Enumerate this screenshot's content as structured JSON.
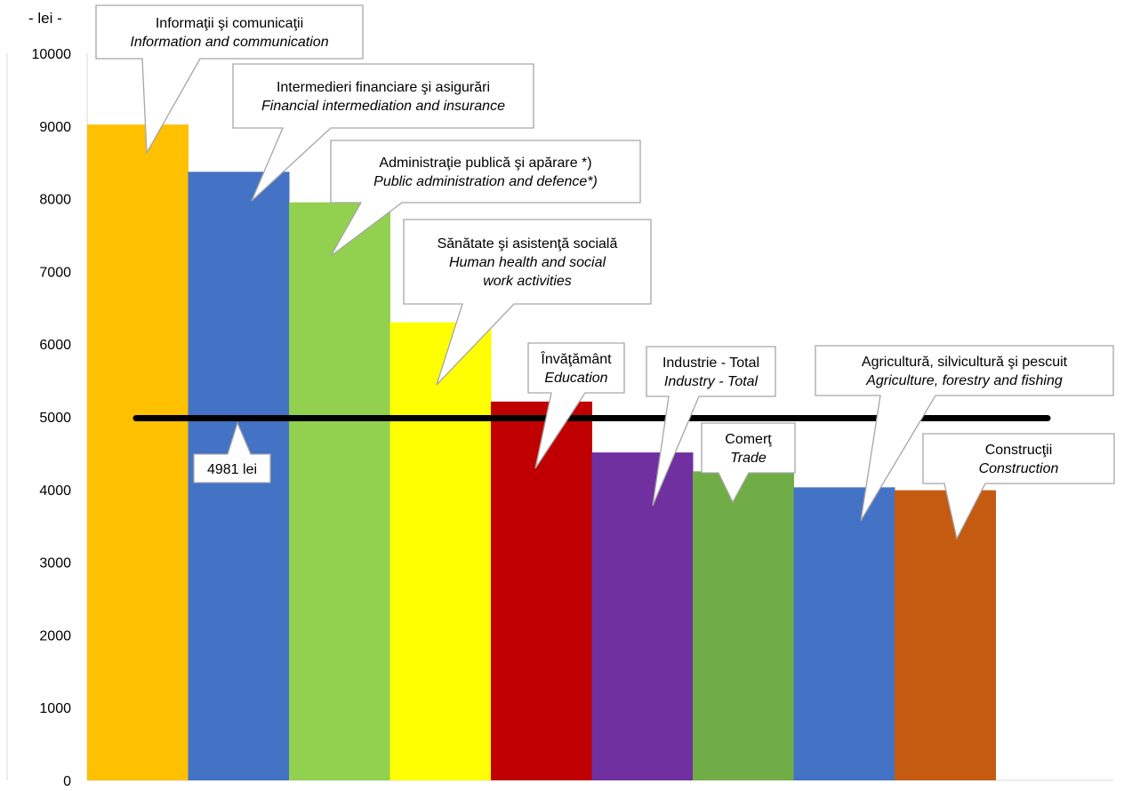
{
  "chart_data": {
    "type": "bar",
    "unit_label": "- lei -",
    "ylim": [
      0,
      10000
    ],
    "yticks": [
      0,
      1000,
      2000,
      3000,
      4000,
      5000,
      6000,
      7000,
      8000,
      9000,
      10000
    ],
    "grid": false,
    "legend": "none",
    "categories": [
      {
        "ro": "Informaţii şi comunicaţii",
        "en": "Information and communication",
        "value": 9020,
        "color": "#FFC000"
      },
      {
        "ro": "Intermedieri financiare şi asigurări",
        "en": "Financial intermediation and insurance",
        "value": 8370,
        "color": "#4472C4"
      },
      {
        "ro": "Administraţie publică şi apărare *)",
        "en": "Public administration and defence*)",
        "value": 7950,
        "color": "#92D050"
      },
      {
        "ro": "Sănătate şi asistenţă socială",
        "en": "Human health and social work activities",
        "value": 6300,
        "color": "#FFFF00"
      },
      {
        "ro": "Învăţământ",
        "en": "Education",
        "value": 5210,
        "color": "#C00000"
      },
      {
        "ro": "Industrie - Total",
        "en": "Industry - Total",
        "value": 4510,
        "color": "#7030A0"
      },
      {
        "ro": "Comerţ",
        "en": "Trade",
        "value": 4250,
        "color": "#70AD47"
      },
      {
        "ro": "Agricultură, silvicultură şi pescuit",
        "en": "Agriculture, forestry and fishing",
        "value": 4030,
        "color": "#4472C4"
      },
      {
        "ro": "Construcţii",
        "en": "Construction",
        "value": 3990,
        "color": "#C55A11"
      }
    ],
    "average_line": {
      "value": 4981,
      "label": "4981 lei",
      "color": "#000000"
    }
  }
}
